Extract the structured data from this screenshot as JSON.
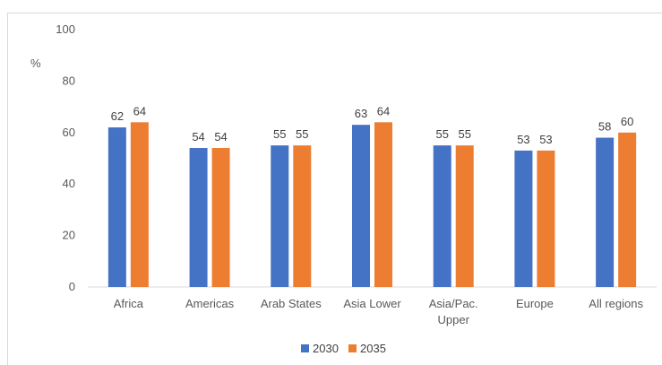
{
  "chart_data": {
    "type": "bar",
    "categories": [
      "Africa",
      "Americas",
      "Arab States",
      "Asia Lower",
      "Asia/Pac. Upper",
      "Europe",
      "All regions"
    ],
    "category_lines": [
      [
        "Africa"
      ],
      [
        "Americas"
      ],
      [
        "Arab States"
      ],
      [
        "Asia Lower"
      ],
      [
        "Asia/Pac.",
        "Upper"
      ],
      [
        "Europe"
      ],
      [
        "All regions"
      ]
    ],
    "series": [
      {
        "name": "2030",
        "values": [
          62,
          54,
          55,
          63,
          55,
          53,
          58
        ],
        "color": "#4472c4"
      },
      {
        "name": "2035",
        "values": [
          64,
          54,
          55,
          64,
          55,
          53,
          60
        ],
        "color": "#ed7d31"
      }
    ],
    "ylabel": "%",
    "ylim": [
      0,
      100
    ],
    "yticks": [
      0,
      20,
      40,
      60,
      80,
      100
    ],
    "grid": false,
    "legend_position": "bottom"
  }
}
